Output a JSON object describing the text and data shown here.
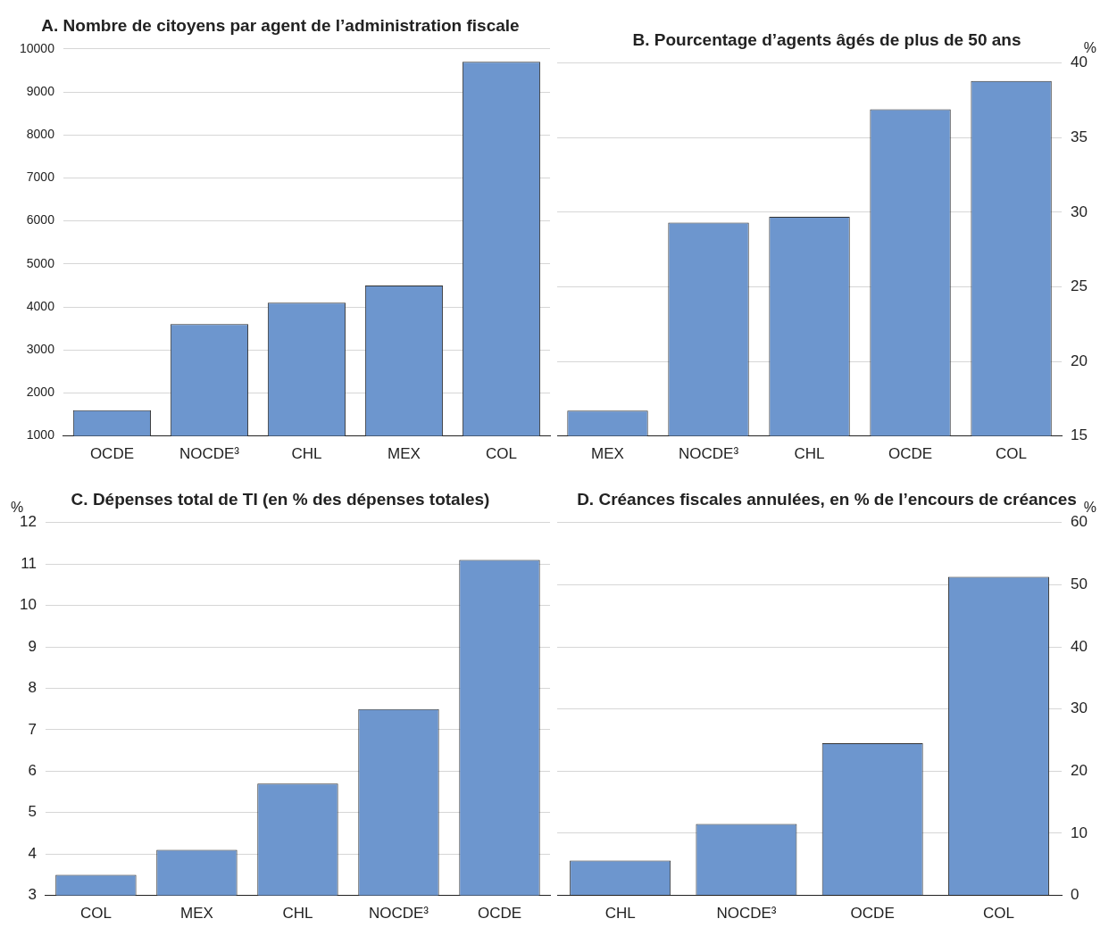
{
  "chart_data": [
    {
      "type": "bar",
      "title": "A. Nombre de citoyens par agent de l’administration fiscale",
      "categories": [
        "OCDE",
        "NOCDE³",
        "CHL",
        "MEX",
        "COL"
      ],
      "values": [
        1600,
        3600,
        4100,
        4500,
        9700
      ],
      "color": "#6d96ce",
      "ylim": [
        1000,
        10000
      ],
      "yticks": [
        1000,
        2000,
        3000,
        4000,
        5000,
        6000,
        7000,
        8000,
        9000,
        10000
      ],
      "grid": "y"
    },
    {
      "type": "bar",
      "title": "B. Pourcentage d’agents âgés de plus de 50 ans",
      "ylabel": "%",
      "categories": [
        "MEX",
        "NOCDE³",
        "CHL",
        "OCDE",
        "COL"
      ],
      "values": [
        16.7,
        29.3,
        29.7,
        36.9,
        38.8
      ],
      "color": "#6d96ce",
      "ylim": [
        15,
        40
      ],
      "yticks": [
        15,
        20,
        25,
        30,
        35,
        40
      ],
      "grid": "y"
    },
    {
      "type": "bar",
      "title": "C. Dépenses total de TI (en % des dépenses totales)",
      "ylabel": "%",
      "categories": [
        "COL",
        "MEX",
        "CHL",
        "NOCDE³",
        "OCDE"
      ],
      "values": [
        3.5,
        4.1,
        5.7,
        7.5,
        11.1
      ],
      "color": "#6d96ce",
      "ylim": [
        3,
        12
      ],
      "yticks": [
        3,
        4,
        5,
        6,
        7,
        8,
        9,
        10,
        11,
        12
      ],
      "grid": "y"
    },
    {
      "type": "bar",
      "title": "D. Créances fiscales annulées, en % de l’encours de créances",
      "ylabel": "%",
      "categories": [
        "CHL",
        "NOCDE³",
        "OCDE",
        "COL"
      ],
      "values": [
        5.6,
        11.5,
        24.5,
        51.3
      ],
      "color": "#6d96ce",
      "ylim": [
        0,
        60
      ],
      "yticks": [
        0,
        10,
        20,
        30,
        40,
        50,
        60
      ],
      "grid": "y"
    }
  ]
}
